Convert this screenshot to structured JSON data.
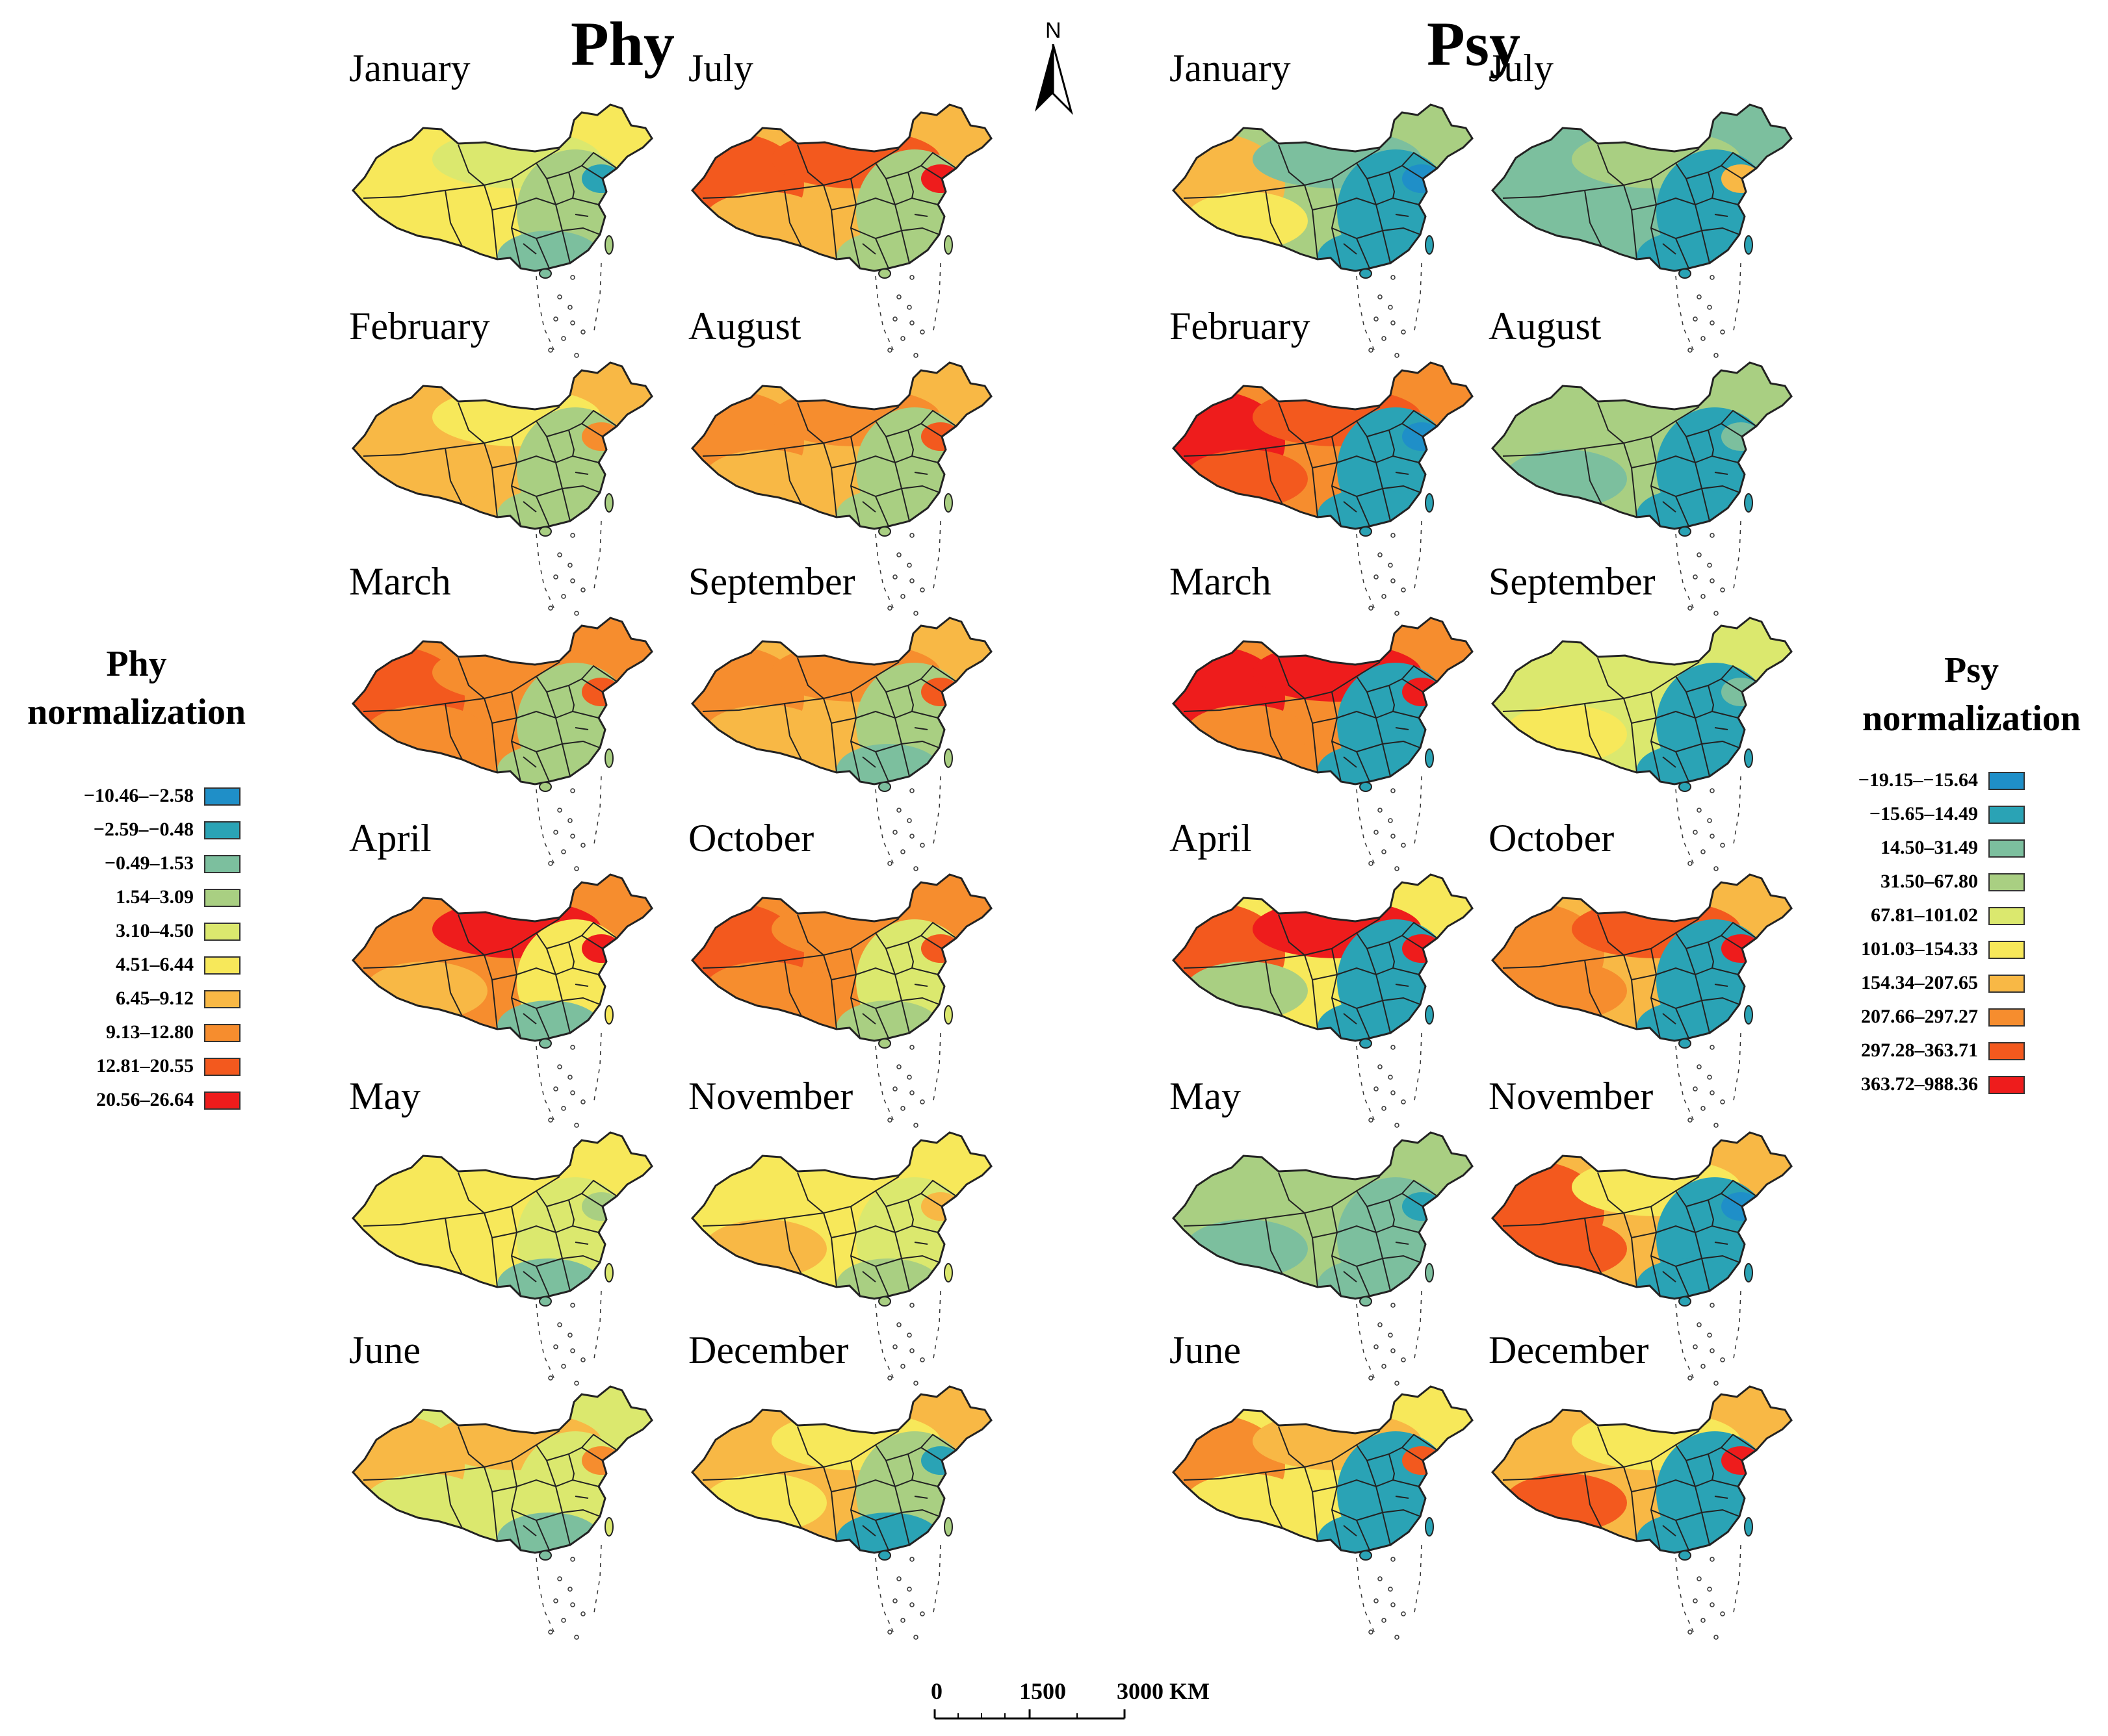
{
  "titles": {
    "phy": "Phy",
    "psy": "Psy"
  },
  "north_arrow": {
    "label": "N"
  },
  "months": [
    "January",
    "February",
    "March",
    "April",
    "May",
    "June",
    "July",
    "August",
    "September",
    "October",
    "November",
    "December"
  ],
  "legend_phy": {
    "title_line1": "Phy",
    "title_line2": "normalization",
    "items": [
      {
        "label": "−10.46–−2.58",
        "color": "#1f8fc8"
      },
      {
        "label": "−2.59–−0.48",
        "color": "#2aa3b5"
      },
      {
        "label": "−0.49–1.53",
        "color": "#7cbf9e"
      },
      {
        "label": "1.54–3.09",
        "color": "#a9cf82"
      },
      {
        "label": "3.10–4.50",
        "color": "#dbe86e"
      },
      {
        "label": "4.51–6.44",
        "color": "#f7e85a"
      },
      {
        "label": "6.45–9.12",
        "color": "#f8b845"
      },
      {
        "label": "9.13–12.80",
        "color": "#f68d2e"
      },
      {
        "label": "12.81–20.55",
        "color": "#f3591e"
      },
      {
        "label": "20.56–26.64",
        "color": "#ee1c1c"
      }
    ]
  },
  "legend_psy": {
    "title_line1": "Psy",
    "title_line2": "normalization",
    "items": [
      {
        "label": "−19.15–−15.64",
        "color": "#1f8fc8"
      },
      {
        "label": "−15.65–14.49",
        "color": "#2aa3b5"
      },
      {
        "label": "14.50–31.49",
        "color": "#7cbf9e"
      },
      {
        "label": "31.50–67.80",
        "color": "#a9cf82"
      },
      {
        "label": "67.81–101.02",
        "color": "#dbe86e"
      },
      {
        "label": "101.03–154.33",
        "color": "#f7e85a"
      },
      {
        "label": "154.34–207.65",
        "color": "#f8b845"
      },
      {
        "label": "207.66–297.27",
        "color": "#f68d2e"
      },
      {
        "label": "297.28–363.71",
        "color": "#f3591e"
      },
      {
        "label": "363.72–988.36",
        "color": "#ee1c1c"
      }
    ]
  },
  "scale_bar": {
    "t0": "0",
    "t1": "1500",
    "t2": "3000 KM"
  },
  "maps": {
    "phy": [
      {
        "base": "#f7e85a",
        "west": "#f7e85a",
        "north": "#dbe86e",
        "east": "#a9cf82",
        "south": "#7cbf9e",
        "tibet": "#f7e85a",
        "hot": "#2aa3b5"
      },
      {
        "base": "#f8b845",
        "west": "#f8b845",
        "north": "#f7e85a",
        "east": "#a9cf82",
        "south": "#a9cf82",
        "tibet": "#f8b845",
        "hot": "#f68d2e"
      },
      {
        "base": "#f68d2e",
        "west": "#f3591e",
        "north": "#f68d2e",
        "east": "#a9cf82",
        "south": "#a9cf82",
        "tibet": "#f68d2e",
        "hot": "#f3591e"
      },
      {
        "base": "#f68d2e",
        "west": "#f68d2e",
        "north": "#ee1c1c",
        "east": "#f7e85a",
        "south": "#7cbf9e",
        "tibet": "#f8b845",
        "hot": "#ee1c1c"
      },
      {
        "base": "#f7e85a",
        "west": "#f7e85a",
        "north": "#f7e85a",
        "east": "#dbe86e",
        "south": "#7cbf9e",
        "tibet": "#f7e85a",
        "hot": "#a9cf82"
      },
      {
        "base": "#dbe86e",
        "west": "#f8b845",
        "north": "#f8b845",
        "east": "#dbe86e",
        "south": "#7cbf9e",
        "tibet": "#dbe86e",
        "hot": "#f68d2e"
      },
      {
        "base": "#f8b845",
        "west": "#f3591e",
        "north": "#f3591e",
        "east": "#a9cf82",
        "south": "#a9cf82",
        "tibet": "#f8b845",
        "hot": "#ee1c1c"
      },
      {
        "base": "#f8b845",
        "west": "#f68d2e",
        "north": "#f68d2e",
        "east": "#a9cf82",
        "south": "#a9cf82",
        "tibet": "#f8b845",
        "hot": "#f3591e"
      },
      {
        "base": "#f8b845",
        "west": "#f68d2e",
        "north": "#f68d2e",
        "east": "#a9cf82",
        "south": "#7cbf9e",
        "tibet": "#f8b845",
        "hot": "#f3591e"
      },
      {
        "base": "#f68d2e",
        "west": "#f3591e",
        "north": "#f68d2e",
        "east": "#dbe86e",
        "south": "#a9cf82",
        "tibet": "#f68d2e",
        "hot": "#f3591e"
      },
      {
        "base": "#f7e85a",
        "west": "#f7e85a",
        "north": "#f7e85a",
        "east": "#dbe86e",
        "south": "#a9cf82",
        "tibet": "#f8b845",
        "hot": "#f8b845"
      },
      {
        "base": "#f8b845",
        "west": "#f8b845",
        "north": "#f7e85a",
        "east": "#a9cf82",
        "south": "#2aa3b5",
        "tibet": "#f7e85a",
        "hot": "#2aa3b5"
      }
    ],
    "psy": [
      {
        "base": "#a9cf82",
        "west": "#f8b845",
        "north": "#7cbf9e",
        "east": "#2aa3b5",
        "south": "#2aa3b5",
        "tibet": "#f7e85a",
        "hot": "#1f8fc8"
      },
      {
        "base": "#f68d2e",
        "west": "#ee1c1c",
        "north": "#f3591e",
        "east": "#2aa3b5",
        "south": "#2aa3b5",
        "tibet": "#f3591e",
        "hot": "#1f8fc8"
      },
      {
        "base": "#f68d2e",
        "west": "#ee1c1c",
        "north": "#ee1c1c",
        "east": "#2aa3b5",
        "south": "#2aa3b5",
        "tibet": "#f68d2e",
        "hot": "#ee1c1c"
      },
      {
        "base": "#f7e85a",
        "west": "#f3591e",
        "north": "#ee1c1c",
        "east": "#2aa3b5",
        "south": "#2aa3b5",
        "tibet": "#a9cf82",
        "hot": "#ee1c1c"
      },
      {
        "base": "#a9cf82",
        "west": "#a9cf82",
        "north": "#a9cf82",
        "east": "#7cbf9e",
        "south": "#7cbf9e",
        "tibet": "#7cbf9e",
        "hot": "#2aa3b5"
      },
      {
        "base": "#f7e85a",
        "west": "#f68d2e",
        "north": "#f8b845",
        "east": "#2aa3b5",
        "south": "#2aa3b5",
        "tibet": "#f7e85a",
        "hot": "#f3591e"
      },
      {
        "base": "#7cbf9e",
        "west": "#7cbf9e",
        "north": "#a9cf82",
        "east": "#2aa3b5",
        "south": "#2aa3b5",
        "tibet": "#7cbf9e",
        "hot": "#f8b845"
      },
      {
        "base": "#a9cf82",
        "west": "#a9cf82",
        "north": "#a9cf82",
        "east": "#2aa3b5",
        "south": "#2aa3b5",
        "tibet": "#7cbf9e",
        "hot": "#7cbf9e"
      },
      {
        "base": "#dbe86e",
        "west": "#dbe86e",
        "north": "#dbe86e",
        "east": "#2aa3b5",
        "south": "#2aa3b5",
        "tibet": "#f7e85a",
        "hot": "#7cbf9e"
      },
      {
        "base": "#f8b845",
        "west": "#f68d2e",
        "north": "#f3591e",
        "east": "#2aa3b5",
        "south": "#2aa3b5",
        "tibet": "#f68d2e",
        "hot": "#ee1c1c"
      },
      {
        "base": "#f8b845",
        "west": "#f3591e",
        "north": "#f7e85a",
        "east": "#2aa3b5",
        "south": "#2aa3b5",
        "tibet": "#f3591e",
        "hot": "#1f8fc8"
      },
      {
        "base": "#f8b845",
        "west": "#f8b845",
        "north": "#f7e85a",
        "east": "#2aa3b5",
        "south": "#2aa3b5",
        "tibet": "#f3591e",
        "hot": "#ee1c1c"
      }
    ]
  }
}
